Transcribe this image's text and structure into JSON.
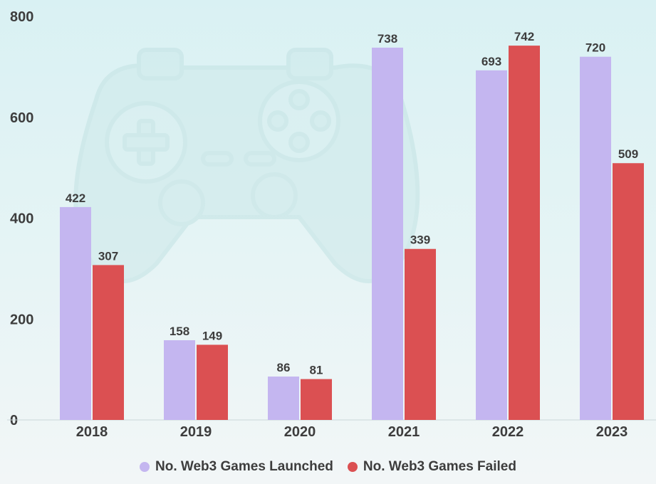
{
  "chart_data": {
    "type": "bar",
    "categories": [
      "2018",
      "2019",
      "2020",
      "2021",
      "2022",
      "2023"
    ],
    "series": [
      {
        "name": "No. Web3 Games Launched",
        "values": [
          422,
          158,
          86,
          738,
          693,
          720
        ],
        "color": "#c4b6f0"
      },
      {
        "name": "No. Web3 Games Failed",
        "values": [
          307,
          149,
          81,
          339,
          742,
          509
        ],
        "color": "#db5052"
      }
    ],
    "yticks": [
      "0",
      "200",
      "400",
      "600",
      "800"
    ],
    "ylim": [
      0,
      800
    ],
    "grid": false,
    "legend": "bottom-center",
    "watermark": "game-controller-icon"
  }
}
